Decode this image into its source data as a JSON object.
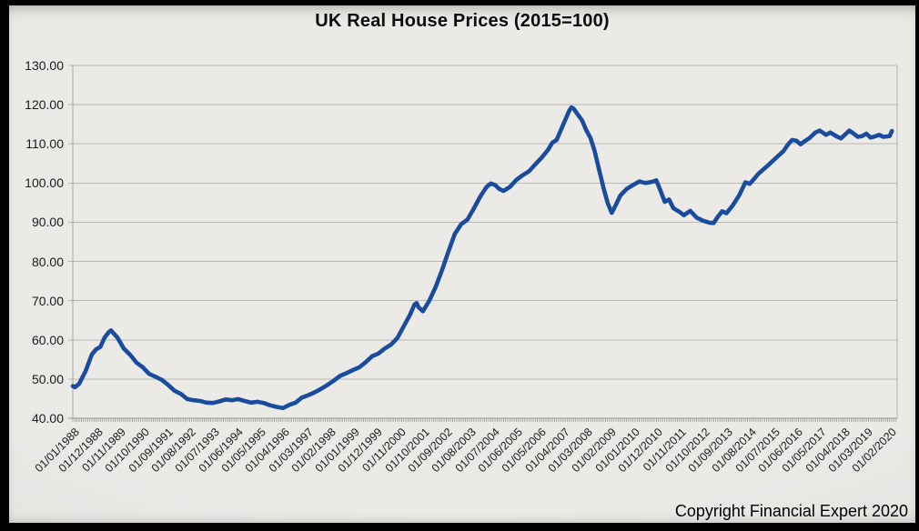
{
  "chart": {
    "title": "UK Real House Prices (2015=100)",
    "copyright": "Copyright Financial Expert 2020"
  },
  "chart_data": {
    "type": "line",
    "title": "UK Real House Prices (2015=100)",
    "xlabel": "",
    "ylabel": "",
    "ylim": [
      40,
      130
    ],
    "y_tick_labels": [
      "130.00",
      "120.00",
      "110.00",
      "100.00",
      "90.00",
      "80.00",
      "70.00",
      "60.00",
      "50.00",
      "40.00"
    ],
    "x_tick_labels": [
      "01/01/1988",
      "01/12/1988",
      "01/11/1989",
      "01/10/1990",
      "01/09/1991",
      "01/08/1992",
      "01/07/1993",
      "01/06/1994",
      "01/05/1995",
      "01/04/1996",
      "01/03/1997",
      "01/02/1998",
      "01/01/1999",
      "01/12/1999",
      "01/11/2000",
      "01/10/2001",
      "01/09/2002",
      "01/08/2003",
      "01/07/2004",
      "01/06/2005",
      "01/05/2006",
      "01/04/2007",
      "01/03/2008",
      "01/02/2009",
      "01/01/2010",
      "01/12/2010",
      "01/11/2011",
      "01/10/2012",
      "01/09/2013",
      "01/08/2014",
      "01/07/2015",
      "01/06/2016",
      "01/05/2017",
      "01/04/2018",
      "01/03/2019",
      "01/02/2020"
    ],
    "x_tick_interval_months": 11,
    "gridlines": "horizontal",
    "legend": "none",
    "annotation": "Copyright Financial Expert 2020",
    "line_color": "#1a4c9e",
    "series": [
      {
        "name": "UK real house price index (2015=100)",
        "points": [
          [
            "1988-01",
            48.2
          ],
          [
            "1988-02",
            47.9
          ],
          [
            "1988-04",
            48.8
          ],
          [
            "1988-07",
            52.0
          ],
          [
            "1988-10",
            56.3
          ],
          [
            "1988-12",
            57.6
          ],
          [
            "1989-02",
            58.2
          ],
          [
            "1989-04",
            60.6
          ],
          [
            "1989-06",
            62.0
          ],
          [
            "1989-07",
            62.4
          ],
          [
            "1989-08",
            61.8
          ],
          [
            "1989-10",
            60.6
          ],
          [
            "1990-01",
            57.8
          ],
          [
            "1990-04",
            56.2
          ],
          [
            "1990-07",
            54.2
          ],
          [
            "1990-10",
            53.0
          ],
          [
            "1991-01",
            51.3
          ],
          [
            "1991-04",
            50.6
          ],
          [
            "1991-07",
            49.8
          ],
          [
            "1991-10",
            48.5
          ],
          [
            "1992-01",
            47.0
          ],
          [
            "1992-04",
            46.2
          ],
          [
            "1992-07",
            44.9
          ],
          [
            "1992-10",
            44.6
          ],
          [
            "1993-01",
            44.4
          ],
          [
            "1993-04",
            44.0
          ],
          [
            "1993-07",
            43.9
          ],
          [
            "1993-10",
            44.3
          ],
          [
            "1994-01",
            44.8
          ],
          [
            "1994-04",
            44.6
          ],
          [
            "1994-07",
            44.9
          ],
          [
            "1994-10",
            44.4
          ],
          [
            "1995-01",
            44.0
          ],
          [
            "1995-04",
            44.2
          ],
          [
            "1995-07",
            43.9
          ],
          [
            "1995-10",
            43.3
          ],
          [
            "1996-01",
            42.9
          ],
          [
            "1996-04",
            42.6
          ],
          [
            "1996-07",
            43.4
          ],
          [
            "1996-10",
            44.0
          ],
          [
            "1997-01",
            45.3
          ],
          [
            "1997-04",
            45.9
          ],
          [
            "1997-07",
            46.6
          ],
          [
            "1997-10",
            47.5
          ],
          [
            "1998-01",
            48.5
          ],
          [
            "1998-04",
            49.6
          ],
          [
            "1998-07",
            50.8
          ],
          [
            "1998-10",
            51.5
          ],
          [
            "1999-01",
            52.3
          ],
          [
            "1999-04",
            53.0
          ],
          [
            "1999-07",
            54.3
          ],
          [
            "1999-10",
            55.8
          ],
          [
            "2000-01",
            56.5
          ],
          [
            "2000-04",
            57.8
          ],
          [
            "2000-07",
            58.8
          ],
          [
            "2000-10",
            60.5
          ],
          [
            "2001-01",
            63.5
          ],
          [
            "2001-04",
            66.5
          ],
          [
            "2001-06",
            69.0
          ],
          [
            "2001-07",
            69.4
          ],
          [
            "2001-08",
            68.3
          ],
          [
            "2001-10",
            67.3
          ],
          [
            "2002-01",
            70.0
          ],
          [
            "2002-04",
            73.5
          ],
          [
            "2002-07",
            77.8
          ],
          [
            "2002-10",
            82.5
          ],
          [
            "2003-01",
            87.0
          ],
          [
            "2003-04",
            89.5
          ],
          [
            "2003-07",
            90.7
          ],
          [
            "2003-10",
            93.5
          ],
          [
            "2004-01",
            96.5
          ],
          [
            "2004-04",
            99.0
          ],
          [
            "2004-06",
            99.9
          ],
          [
            "2004-08",
            99.5
          ],
          [
            "2004-10",
            98.5
          ],
          [
            "2004-12",
            98.0
          ],
          [
            "2005-03",
            99.0
          ],
          [
            "2005-06",
            100.8
          ],
          [
            "2005-09",
            102.0
          ],
          [
            "2005-12",
            103.0
          ],
          [
            "2006-03",
            104.8
          ],
          [
            "2006-06",
            106.5
          ],
          [
            "2006-09",
            108.5
          ],
          [
            "2006-11",
            110.3
          ],
          [
            "2007-01",
            111.0
          ],
          [
            "2007-03",
            113.5
          ],
          [
            "2007-05",
            116.0
          ],
          [
            "2007-07",
            118.5
          ],
          [
            "2007-08",
            119.3
          ],
          [
            "2007-09",
            119.0
          ],
          [
            "2007-11",
            117.5
          ],
          [
            "2008-01",
            116.0
          ],
          [
            "2008-03",
            113.5
          ],
          [
            "2008-05",
            111.5
          ],
          [
            "2008-07",
            108.0
          ],
          [
            "2008-09",
            103.5
          ],
          [
            "2008-11",
            99.0
          ],
          [
            "2009-01",
            95.0
          ],
          [
            "2009-03",
            92.4
          ],
          [
            "2009-05",
            94.5
          ],
          [
            "2009-07",
            96.8
          ],
          [
            "2009-10",
            98.5
          ],
          [
            "2010-01",
            99.5
          ],
          [
            "2010-04",
            100.4
          ],
          [
            "2010-07",
            100.0
          ],
          [
            "2010-10",
            100.3
          ],
          [
            "2010-12",
            100.7
          ],
          [
            "2011-02",
            98.0
          ],
          [
            "2011-04",
            95.2
          ],
          [
            "2011-06",
            95.8
          ],
          [
            "2011-08",
            93.6
          ],
          [
            "2011-11",
            92.6
          ],
          [
            "2012-01",
            91.8
          ],
          [
            "2012-04",
            92.9
          ],
          [
            "2012-07",
            91.2
          ],
          [
            "2012-10",
            90.4
          ],
          [
            "2013-01",
            89.9
          ],
          [
            "2013-03",
            89.8
          ],
          [
            "2013-05",
            91.4
          ],
          [
            "2013-07",
            92.8
          ],
          [
            "2013-09",
            92.3
          ],
          [
            "2013-12",
            94.3
          ],
          [
            "2014-03",
            96.8
          ],
          [
            "2014-06",
            100.2
          ],
          [
            "2014-08",
            99.8
          ],
          [
            "2014-10",
            101.0
          ],
          [
            "2014-12",
            102.3
          ],
          [
            "2015-04",
            104.2
          ],
          [
            "2015-08",
            106.2
          ],
          [
            "2015-12",
            108.2
          ],
          [
            "2016-02",
            109.8
          ],
          [
            "2016-04",
            111.0
          ],
          [
            "2016-06",
            110.8
          ],
          [
            "2016-08",
            109.9
          ],
          [
            "2016-10",
            110.7
          ],
          [
            "2016-12",
            111.4
          ],
          [
            "2017-03",
            112.9
          ],
          [
            "2017-05",
            113.4
          ],
          [
            "2017-08",
            112.3
          ],
          [
            "2017-10",
            112.9
          ],
          [
            "2018-01",
            111.9
          ],
          [
            "2018-03",
            111.4
          ],
          [
            "2018-05",
            112.4
          ],
          [
            "2018-07",
            113.4
          ],
          [
            "2018-09",
            112.6
          ],
          [
            "2018-11",
            111.8
          ],
          [
            "2019-01",
            112.0
          ],
          [
            "2019-03",
            112.6
          ],
          [
            "2019-05",
            111.6
          ],
          [
            "2019-07",
            111.9
          ],
          [
            "2019-09",
            112.3
          ],
          [
            "2019-11",
            111.8
          ],
          [
            "2020-01",
            111.9
          ],
          [
            "2020-02",
            112.0
          ],
          [
            "2020-03",
            113.3
          ]
        ]
      }
    ]
  }
}
